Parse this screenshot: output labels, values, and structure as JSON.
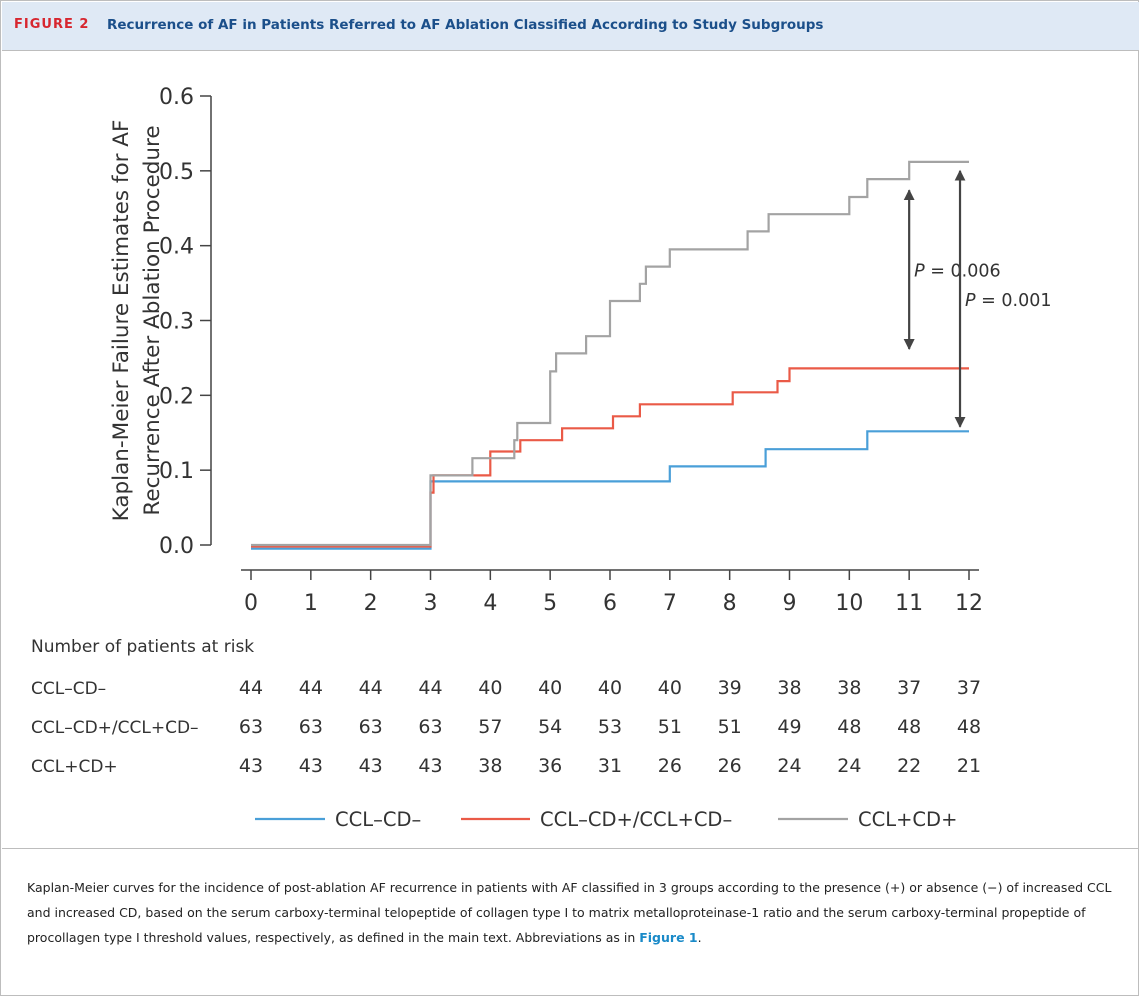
{
  "header": {
    "figure_label": "FIGURE 2",
    "title": "Recurrence of AF in Patients Referred to AF Ablation Classified According to Study Subgroups"
  },
  "chart_data": {
    "type": "line",
    "step": true,
    "ylabel_line1": "Kaplan-Meier Failure Estimates for  AF",
    "ylabel_line2": "Recurrence After Ablation Procedure",
    "xlabel": "",
    "xlim": [
      0,
      12
    ],
    "ylim": [
      0,
      0.6
    ],
    "x_ticks": [
      "0",
      "1",
      "2",
      "3",
      "4",
      "5",
      "6",
      "7",
      "8",
      "9",
      "10",
      "11",
      "12"
    ],
    "y_ticks": [
      "0.0",
      "0.1",
      "0.2",
      "0.3",
      "0.4",
      "0.5",
      "0.6"
    ],
    "grid": false,
    "legend_position": "bottom",
    "series": [
      {
        "name": "CCL–CD–",
        "color": "#4a9fd8",
        "points": [
          [
            0,
            -0.005
          ],
          [
            3,
            -0.005
          ],
          [
            3,
            0.085
          ],
          [
            7,
            0.085
          ],
          [
            7,
            0.105
          ],
          [
            8.6,
            0.105
          ],
          [
            8.6,
            0.128
          ],
          [
            10.3,
            0.128
          ],
          [
            10.3,
            0.152
          ],
          [
            12,
            0.152
          ]
        ]
      },
      {
        "name": "CCL–CD+/CCL+CD–",
        "color": "#ea5a47",
        "points": [
          [
            0,
            -0.002
          ],
          [
            3,
            -0.002
          ],
          [
            3,
            0.07
          ],
          [
            3.05,
            0.07
          ],
          [
            3.05,
            0.093
          ],
          [
            4,
            0.093
          ],
          [
            4,
            0.125
          ],
          [
            4.5,
            0.125
          ],
          [
            4.5,
            0.14
          ],
          [
            5.2,
            0.14
          ],
          [
            5.2,
            0.156
          ],
          [
            6.05,
            0.156
          ],
          [
            6.05,
            0.172
          ],
          [
            6.5,
            0.172
          ],
          [
            6.5,
            0.188
          ],
          [
            8.05,
            0.188
          ],
          [
            8.05,
            0.204
          ],
          [
            8.8,
            0.204
          ],
          [
            8.8,
            0.219
          ],
          [
            9,
            0.219
          ],
          [
            9,
            0.236
          ],
          [
            12,
            0.236
          ]
        ]
      },
      {
        "name": "CCL+CD+",
        "color": "#a3a3a3",
        "points": [
          [
            0,
            0.0
          ],
          [
            3,
            0.0
          ],
          [
            3,
            0.093
          ],
          [
            3.7,
            0.093
          ],
          [
            3.7,
            0.116
          ],
          [
            4.4,
            0.116
          ],
          [
            4.4,
            0.14
          ],
          [
            4.45,
            0.14
          ],
          [
            4.45,
            0.163
          ],
          [
            5,
            0.163
          ],
          [
            5,
            0.232
          ],
          [
            5.1,
            0.232
          ],
          [
            5.1,
            0.256
          ],
          [
            5.6,
            0.256
          ],
          [
            5.6,
            0.279
          ],
          [
            6,
            0.279
          ],
          [
            6,
            0.326
          ],
          [
            6.5,
            0.326
          ],
          [
            6.5,
            0.349
          ],
          [
            6.6,
            0.349
          ],
          [
            6.6,
            0.372
          ],
          [
            7,
            0.372
          ],
          [
            7,
            0.395
          ],
          [
            8.3,
            0.395
          ],
          [
            8.3,
            0.419
          ],
          [
            8.65,
            0.419
          ],
          [
            8.65,
            0.442
          ],
          [
            10,
            0.442
          ],
          [
            10,
            0.465
          ],
          [
            10.3,
            0.465
          ],
          [
            10.3,
            0.489
          ],
          [
            11,
            0.489
          ],
          [
            11,
            0.512
          ],
          [
            12,
            0.512
          ]
        ]
      }
    ],
    "annotations": [
      {
        "p_italic": "P",
        "text": " = 0.006",
        "x": 11,
        "y_from": 0.474,
        "y_to": 0.262
      },
      {
        "p_italic": "P",
        "text": " = 0.001",
        "x": 11.85,
        "y_from": 0.5,
        "y_to": 0.158
      }
    ],
    "risk_table": {
      "title": "Number of patients at risk",
      "rows": [
        {
          "label": "CCL–CD–",
          "values": [
            "44",
            "44",
            "44",
            "44",
            "40",
            "40",
            "40",
            "40",
            "39",
            "38",
            "38",
            "37",
            "37"
          ]
        },
        {
          "label": "CCL–CD+/CCL+CD–",
          "values": [
            "63",
            "63",
            "63",
            "63",
            "57",
            "54",
            "53",
            "51",
            "51",
            "49",
            "48",
            "48",
            "48"
          ]
        },
        {
          "label": "CCL+CD+",
          "values": [
            "43",
            "43",
            "43",
            "43",
            "38",
            "36",
            "31",
            "26",
            "26",
            "24",
            "24",
            "22",
            "21"
          ]
        }
      ]
    }
  },
  "caption": {
    "text": "Kaplan-Meier curves for the incidence of post-ablation AF recurrence in patients with AF classified in 3 groups according to the presence (+) or absence (−) of increased CCL and increased CD, based on the serum carboxy-terminal telopeptide of collagen type I to matrix metalloproteinase-1 ratio and the serum carboxy-terminal propeptide of procollagen type I threshold values, respectively, as defined in the main text. Abbreviations as in ",
    "link": "Figure 1",
    "end": "."
  }
}
